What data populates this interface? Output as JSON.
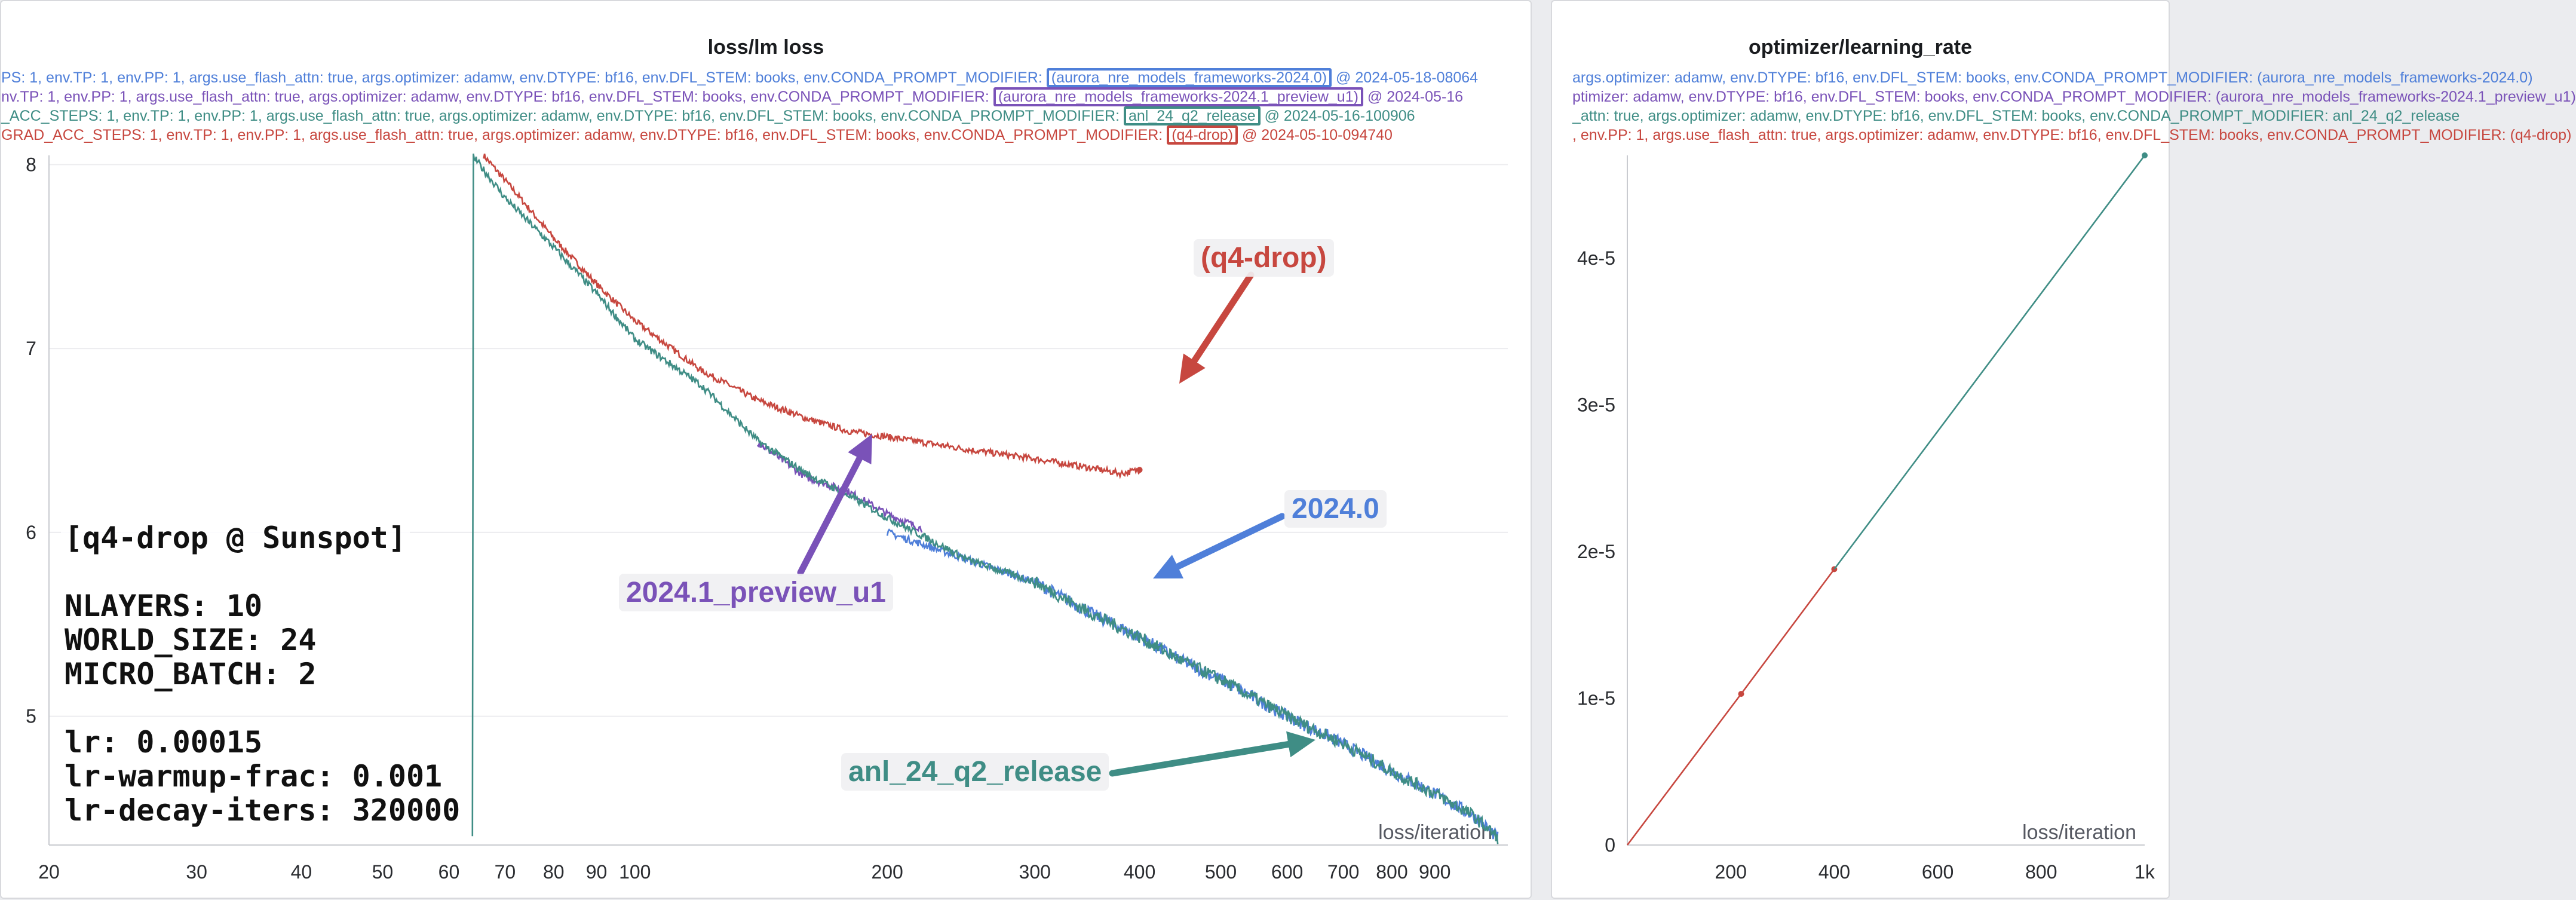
{
  "colors": {
    "blue": "#4f7fd9",
    "purple": "#7a52b8",
    "teal": "#3f8d85",
    "red": "#c7473f",
    "grid": "#ececef",
    "axis_text": "#2a2c30"
  },
  "loss_panel": {
    "title": "loss/lm loss",
    "legend": [
      {
        "pre": "PS: 1, env.TP: 1, env.PP: 1, args.use_flash_attn: true, args.optimizer: adamw, env.DTYPE: bf16, env.DFL_STEM: books, env.CONDA_PROMPT_MODIFIER: ",
        "box": "(aurora_nre_models_frameworks-2024.0)",
        "post": " @ 2024-05-18-08064",
        "color_key": "blue"
      },
      {
        "pre": "nv.TP: 1, env.PP: 1, args.use_flash_attn: true, args.optimizer: adamw, env.DTYPE: bf16, env.DFL_STEM: books, env.CONDA_PROMPT_MODIFIER: ",
        "box": "(aurora_nre_models_frameworks-2024.1_preview_u1)",
        "post": " @ 2024-05-16",
        "color_key": "purple"
      },
      {
        "pre": "_ACC_STEPS: 1, env.TP: 1, env.PP: 1, args.use_flash_attn: true, args.optimizer: adamw, env.DTYPE: bf16, env.DFL_STEM: books, env.CONDA_PROMPT_MODIFIER: ",
        "box": "anl_24_q2_release",
        "post": " @ 2024-05-16-100906",
        "color_key": "teal"
      },
      {
        "pre": "GRAD_ACC_STEPS: 1, env.TP: 1, env.PP: 1, args.use_flash_attn: true, args.optimizer: adamw, env.DTYPE: bf16, env.DFL_STEM: books, env.CONDA_PROMPT_MODIFIER: ",
        "box": "(q4-drop)",
        "post": " @ 2024-05-10-094740",
        "color_key": "red"
      }
    ],
    "xlabel": "loss/iteration",
    "info_lines": [
      "[q4-drop @ Sunspot]",
      "",
      "NLAYERS: 10",
      "WORLD_SIZE: 24",
      "MICRO_BATCH: 2",
      "",
      "lr: 0.00015",
      "lr-warmup-frac: 0.001",
      "lr-decay-iters: 320000"
    ],
    "callouts": {
      "q4_drop": "(q4-drop)",
      "v2024_0": "2024.0",
      "preview": "2024.1_preview_u1",
      "anl": "anl_24_q2_release"
    }
  },
  "lr_panel": {
    "title": "optimizer/learning_rate",
    "legend": [
      {
        "text": "args.optimizer: adamw, env.DTYPE: bf16, env.DFL_STEM: books, env.CONDA_PROMPT_MODIFIER: (aurora_nre_models_frameworks-2024.0)",
        "color_key": "blue"
      },
      {
        "text": "ptimizer: adamw, env.DTYPE: bf16, env.DFL_STEM: books, env.CONDA_PROMPT_MODIFIER: (aurora_nre_models_frameworks-2024.1_preview_u1)",
        "color_key": "purple"
      },
      {
        "text": "_attn: true, args.optimizer: adamw, env.DTYPE: bf16, env.DFL_STEM: books, env.CONDA_PROMPT_MODIFIER: anl_24_q2_release",
        "color_key": "teal"
      },
      {
        "text": ", env.PP: 1, args.use_flash_attn: true, args.optimizer: adamw, env.DTYPE: bf16, env.DFL_STEM: books, env.CONDA_PROMPT_MODIFIER: (q4-drop)",
        "color_key": "red"
      }
    ],
    "xlabel": "loss/iteration"
  },
  "chart_data": [
    {
      "type": "line",
      "title": "loss/lm loss",
      "xlabel": "loss/iteration",
      "ylabel": "",
      "xscale": "log",
      "xlim": [
        20,
        1100
      ],
      "ylim": [
        4.3,
        8.05
      ],
      "xticks": [
        20,
        30,
        40,
        50,
        60,
        70,
        80,
        90,
        100,
        200,
        300,
        400,
        500,
        600,
        700,
        800,
        900
      ],
      "xtick_labels": [
        "20",
        "30",
        "40",
        "50",
        "60",
        "70",
        "80",
        "90",
        "100",
        "200",
        "300",
        "400",
        "500",
        "600",
        "700",
        "800",
        "900"
      ],
      "yticks": [
        5,
        6,
        7,
        8
      ],
      "ytick_labels": [
        "5",
        "6",
        "7",
        "8"
      ],
      "grid": true,
      "legend_position": "top",
      "series": [
        {
          "name": "(aurora_nre_models_frameworks-2024.0)",
          "color_key": "blue",
          "x": [
            200,
            250,
            300,
            350,
            400,
            450,
            500,
            600,
            700,
            800,
            900,
            1000,
            1070
          ],
          "y": [
            6.0,
            5.85,
            5.73,
            5.56,
            5.43,
            5.3,
            5.2,
            5.0,
            4.85,
            4.7,
            4.58,
            4.46,
            4.34
          ]
        },
        {
          "name": "(aurora_nre_models_frameworks-2024.1_preview_u1)",
          "color_key": "purple",
          "x": [
            140,
            160,
            180,
            200,
            220
          ],
          "y": [
            6.49,
            6.3,
            6.22,
            6.1,
            6.02
          ]
        },
        {
          "name": "anl_24_q2_release",
          "color_key": "teal",
          "x": [
            64,
            70,
            80,
            90,
            100,
            120,
            140,
            160,
            180,
            200,
            250,
            300,
            350,
            400,
            450,
            500,
            600,
            700,
            800,
            900,
            1000,
            1070
          ],
          "y": [
            8.05,
            7.82,
            7.55,
            7.3,
            7.05,
            6.8,
            6.5,
            6.32,
            6.2,
            6.08,
            5.85,
            5.73,
            5.56,
            5.43,
            5.3,
            5.2,
            5.0,
            4.85,
            4.7,
            4.58,
            4.46,
            4.34
          ]
        },
        {
          "name": "(q4-drop)",
          "color_key": "red",
          "x": [
            66,
            72,
            80,
            90,
            100,
            120,
            140,
            160,
            180,
            200,
            250,
            300,
            350,
            380,
            400
          ],
          "y": [
            8.05,
            7.85,
            7.6,
            7.35,
            7.15,
            6.88,
            6.72,
            6.62,
            6.55,
            6.52,
            6.45,
            6.4,
            6.35,
            6.32,
            6.34
          ]
        }
      ]
    },
    {
      "type": "line",
      "title": "optimizer/learning_rate",
      "xlabel": "loss/iteration",
      "ylabel": "",
      "xlim": [
        0,
        1000
      ],
      "ylim": [
        0,
        4.7e-05
      ],
      "xticks": [
        200,
        400,
        600,
        800,
        1000
      ],
      "xtick_labels": [
        "200",
        "400",
        "600",
        "800",
        "1k"
      ],
      "yticks": [
        0,
        1e-05,
        2e-05,
        3e-05,
        4e-05
      ],
      "ytick_labels": [
        "0",
        "1e-5",
        "2e-5",
        "3e-5",
        "4e-5"
      ],
      "grid": false,
      "legend_position": "top",
      "series": [
        {
          "name": "(q4-drop)",
          "color_key": "red",
          "x": [
            0,
            220,
            400
          ],
          "y": [
            0,
            1.03e-05,
            1.88e-05
          ],
          "markers": [
            220,
            400
          ]
        },
        {
          "name": "anl_24_q2_release",
          "color_key": "teal",
          "x": [
            400,
            1000
          ],
          "y": [
            1.88e-05,
            4.7e-05
          ],
          "markers": [
            1000
          ]
        }
      ]
    }
  ]
}
